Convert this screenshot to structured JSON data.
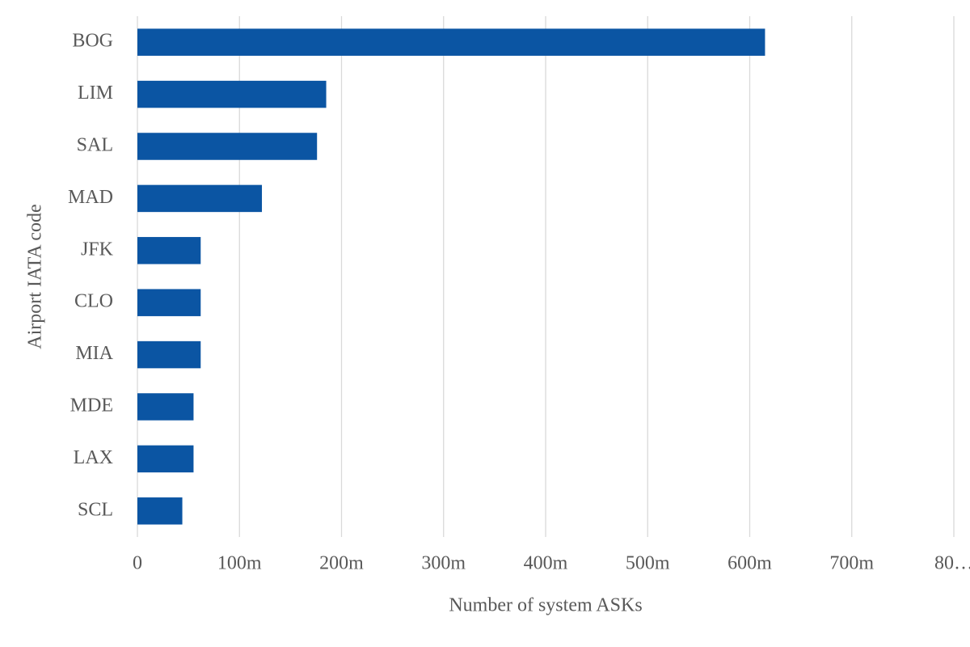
{
  "chart_data": {
    "type": "hbar",
    "xlabel": "Number of system ASKs",
    "ylabel": "Airport IATA code",
    "categories": [
      "BOG",
      "LIM",
      "SAL",
      "MAD",
      "JFK",
      "CLO",
      "MIA",
      "MDE",
      "LAX",
      "SCL"
    ],
    "values": [
      615000000,
      185000000,
      176000000,
      122000000,
      62000000,
      62000000,
      62000000,
      55000000,
      55000000,
      44000000
    ],
    "color": "#0b55a3",
    "xlim": [
      0,
      800000000
    ],
    "xticks": [
      0,
      {
        "value": 100000000,
        "label": "100m"
      },
      {
        "value": 200000000,
        "label": "200m"
      },
      {
        "value": 300000000,
        "label": "300m"
      },
      {
        "value": 400000000,
        "label": "400m"
      },
      {
        "value": 500000000,
        "label": "500m"
      },
      {
        "value": 600000000,
        "label": "600m"
      },
      {
        "value": 700000000,
        "label": "700m"
      },
      {
        "value": 800000000,
        "label": "80…"
      }
    ],
    "grid": true
  }
}
